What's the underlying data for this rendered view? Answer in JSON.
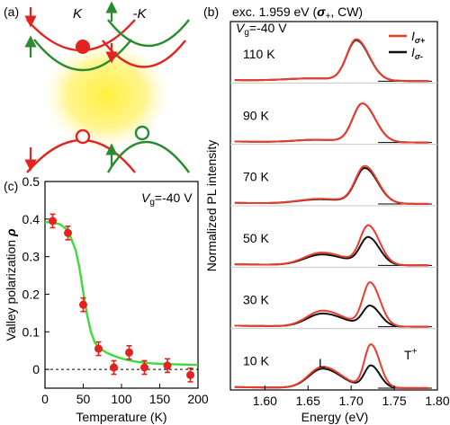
{
  "colors": {
    "red": "#e3231f",
    "green": "#2a8a2f",
    "fit_green": "#3bdc3b",
    "pl_red": "#ee3b2b",
    "pl_black": "#111111",
    "glow": "#ffef2a",
    "grey_frame": "#cfcfcf"
  },
  "panel_a": {
    "label": "(a)",
    "k_label": "K",
    "minus_k_label": "-K"
  },
  "panel_b": {
    "label": "(b)",
    "excitation": "exc. 1.959 eV (",
    "excitation_sigma": "σ",
    "excitation_sub": "+",
    "excitation_tail": ", CW)",
    "vg_v": "V",
    "vg_sub": "g",
    "vg_value": "=-40 V",
    "legend": [
      {
        "main": "I",
        "sub": "σ+",
        "color": "#ee3b2b"
      },
      {
        "main": "I",
        "sub": "σ-",
        "color": "#111111"
      }
    ],
    "ylabel": "Normalized PL intensity",
    "xlabel": "Energy (eV)",
    "xticks": [
      "1.60",
      "1.65",
      "1.70",
      "1.75",
      "1.80"
    ],
    "annot_L": "L",
    "annot_T": "T",
    "annot_T_sup": "+"
  },
  "panel_c": {
    "label": "(c)",
    "vg_v": "V",
    "vg_sub": "g",
    "vg_value": "=-40 V",
    "ylabel_main": "Valley polarization ",
    "ylabel_rho": "ρ",
    "xlabel": "Temperature (K)",
    "xticks": [
      "0",
      "50",
      "100",
      "150",
      "200"
    ],
    "yticks": [
      "0",
      "0.1",
      "0.2",
      "0.3",
      "0.4",
      "0.5"
    ]
  },
  "chart_data": [
    {
      "type": "scatter",
      "panel": "c",
      "x": [
        10,
        30,
        50,
        70,
        90,
        110,
        130,
        160,
        190
      ],
      "y": [
        0.395,
        0.363,
        0.172,
        0.055,
        0.005,
        0.045,
        0.005,
        0.01,
        -0.015
      ],
      "yerr": [
        0.018,
        0.018,
        0.018,
        0.018,
        0.018,
        0.018,
        0.018,
        0.018,
        0.018
      ],
      "fit": {
        "x": [
          0,
          10,
          20,
          30,
          40,
          45,
          50,
          55,
          60,
          65,
          70,
          80,
          90,
          100,
          110,
          120,
          140,
          160,
          180,
          200
        ],
        "y": [
          0.392,
          0.391,
          0.386,
          0.37,
          0.318,
          0.27,
          0.205,
          0.145,
          0.1,
          0.072,
          0.058,
          0.045,
          0.036,
          0.029,
          0.024,
          0.02,
          0.016,
          0.014,
          0.013,
          0.012
        ]
      },
      "xlabel": "Temperature (K)",
      "ylabel": "Valley polarization ρ",
      "xlim": [
        0,
        200
      ],
      "ylim": [
        -0.05,
        0.5
      ],
      "zero_line": true
    },
    {
      "type": "line",
      "panel": "b",
      "xlabel": "Energy (eV)",
      "ylabel": "Normalized PL intensity",
      "xlim": [
        1.56,
        1.8
      ],
      "stack": [
        {
          "label": "110 K",
          "peaks": {
            "red": [
              [
                1.706,
                0.85,
                0.011
              ],
              [
                1.655,
                0.05,
                0.03
              ]
            ],
            "black": [
              [
                1.706,
                0.83,
                0.011
              ],
              [
                1.655,
                0.05,
                0.03
              ]
            ]
          }
        },
        {
          "label": "90 K",
          "peaks": {
            "red": [
              [
                1.713,
                0.8,
                0.011
              ],
              [
                1.66,
                0.05,
                0.025
              ]
            ],
            "black": [
              [
                1.713,
                0.8,
                0.011
              ],
              [
                1.66,
                0.05,
                0.025
              ]
            ]
          }
        },
        {
          "label": "70 K",
          "peaks": {
            "red": [
              [
                1.716,
                0.76,
                0.011
              ],
              [
                1.664,
                0.1,
                0.025
              ]
            ],
            "black": [
              [
                1.716,
                0.72,
                0.011
              ],
              [
                1.664,
                0.09,
                0.025
              ]
            ]
          }
        },
        {
          "label": "50 K",
          "peaks": {
            "red": [
              [
                1.72,
                0.8,
                0.0095
              ],
              [
                1.666,
                0.26,
                0.02
              ]
            ],
            "black": [
              [
                1.72,
                0.56,
                0.0095
              ],
              [
                1.666,
                0.22,
                0.02
              ]
            ]
          }
        },
        {
          "label": "30 K",
          "peaks": {
            "red": [
              [
                1.722,
                0.9,
                0.0085
              ],
              [
                1.667,
                0.33,
                0.018
              ]
            ],
            "black": [
              [
                1.722,
                0.42,
                0.0085
              ],
              [
                1.667,
                0.27,
                0.018
              ]
            ]
          }
        },
        {
          "label": "10 K",
          "peaks": {
            "red": [
              [
                1.723,
                0.9,
                0.0075
              ],
              [
                1.667,
                0.44,
                0.016
              ]
            ],
            "black": [
              [
                1.723,
                0.46,
                0.0075
              ],
              [
                1.667,
                0.4,
                0.016
              ]
            ]
          }
        }
      ],
      "series": [
        {
          "name": "Iσ+",
          "color": "#ee3b2b"
        },
        {
          "name": "Iσ-",
          "color": "#111111"
        }
      ]
    }
  ]
}
